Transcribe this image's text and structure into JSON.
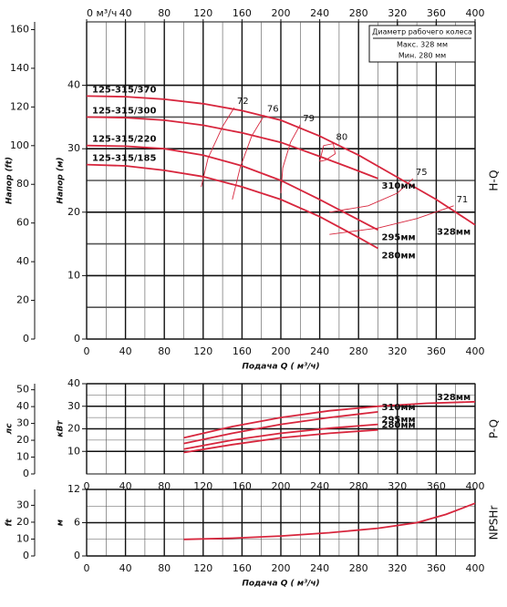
{
  "chart_data": [
    {
      "type": "line",
      "title": "H-Q",
      "xlabel": "Подача Q ( м³/ч)",
      "ylabel": "Напор (м)",
      "y2label": "Напор (ft)",
      "xlim": [
        0,
        400
      ],
      "xticks": [
        0,
        40,
        80,
        120,
        160,
        200,
        240,
        280,
        320,
        360,
        400
      ],
      "x2ticks": [
        {
          "value": 0,
          "label": "0 м³/ч"
        },
        40,
        80,
        120,
        160,
        200,
        240,
        280,
        320,
        360,
        400
      ],
      "ylim": [
        0,
        50
      ],
      "yticks": [
        0,
        10,
        20,
        30,
        40
      ],
      "y2lim": [
        0,
        164
      ],
      "y2ticks": [
        0,
        20,
        40,
        60,
        80,
        100,
        120,
        140,
        160
      ],
      "grid": true,
      "legend": {
        "title": "Диаметр рабочего колеса",
        "lines": [
          "Макс. 328 мм",
          "Мин. 280 мм"
        ]
      },
      "series": [
        {
          "name": "125-315/370",
          "label": "328мм",
          "color": "#d7263d",
          "x": [
            0,
            40,
            80,
            120,
            160,
            200,
            240,
            280,
            320,
            360,
            400
          ],
          "values": [
            38.3,
            38.2,
            37.8,
            37.1,
            36,
            34.5,
            32,
            29,
            25.5,
            22,
            18
          ]
        },
        {
          "name": "125-315/300",
          "label": "310мм",
          "color": "#d7263d",
          "x": [
            0,
            40,
            80,
            120,
            160,
            200,
            240,
            280,
            300
          ],
          "values": [
            35,
            34.9,
            34.5,
            33.7,
            32.5,
            31,
            28.8,
            26.5,
            25.3
          ]
        },
        {
          "name": "125-315/220",
          "label": "295мм",
          "color": "#d7263d",
          "x": [
            0,
            40,
            80,
            120,
            160,
            200,
            240,
            280,
            300
          ],
          "values": [
            30.5,
            30.4,
            30,
            29,
            27.3,
            25,
            22,
            18.8,
            17.2
          ]
        },
        {
          "name": "125-315/185",
          "label": "280мм",
          "color": "#d7263d",
          "x": [
            0,
            40,
            80,
            120,
            160,
            200,
            240,
            280,
            300
          ],
          "values": [
            27.5,
            27.3,
            26.6,
            25.6,
            24,
            22,
            19.3,
            16,
            14.3
          ]
        }
      ],
      "efficiency_lines": [
        {
          "name": "72",
          "color": "#d7263d",
          "x": [
            118,
            125,
            140,
            152
          ],
          "values": [
            24,
            28.5,
            33.5,
            36.5
          ]
        },
        {
          "name": "76",
          "color": "#d7263d",
          "x": [
            150,
            158,
            170,
            183
          ],
          "values": [
            22,
            27,
            32,
            35.3
          ]
        },
        {
          "name": "79",
          "color": "#d7263d",
          "x": [
            200,
            202,
            210,
            220
          ],
          "values": [
            23,
            27,
            31,
            33.8
          ]
        },
        {
          "name": "80",
          "color": "#d7263d",
          "x": [
            240,
            244,
            254,
            256,
            246,
            240
          ],
          "values": [
            28,
            30.5,
            30.8,
            29.2,
            28.2,
            28
          ]
        },
        {
          "name": "75",
          "color": "#d7263d",
          "x": [
            250,
            290,
            320,
            336
          ],
          "values": [
            20,
            21,
            23,
            25.3
          ]
        },
        {
          "name": "71",
          "color": "#d7263d",
          "x": [
            250,
            300,
            340,
            378
          ],
          "values": [
            16.5,
            17.5,
            19,
            21
          ]
        }
      ]
    },
    {
      "type": "line",
      "title": "P-Q",
      "ylabel": "кВт",
      "y2label": "лс",
      "xlim": [
        0,
        400
      ],
      "xticks": [
        0,
        40,
        80,
        120,
        160,
        200,
        240,
        280,
        320,
        360,
        400
      ],
      "ylim": [
        0,
        40
      ],
      "yticks": [
        10,
        20,
        30,
        40
      ],
      "y2lim": [
        0,
        53.6
      ],
      "y2ticks": [
        0,
        10,
        20,
        30,
        40,
        50
      ],
      "grid": true,
      "series": [
        {
          "name": "328мм",
          "color": "#d7263d",
          "x": [
            100,
            150,
            200,
            250,
            300,
            350,
            400
          ],
          "values": [
            16,
            21,
            25,
            28,
            30,
            31.3,
            32
          ]
        },
        {
          "name": "310мм",
          "color": "#d7263d",
          "x": [
            100,
            150,
            200,
            250,
            300
          ],
          "values": [
            13.5,
            18,
            22,
            25,
            27.5
          ]
        },
        {
          "name": "295мм",
          "color": "#d7263d",
          "x": [
            100,
            150,
            200,
            250,
            300
          ],
          "values": [
            11,
            15,
            18,
            20.3,
            22
          ]
        },
        {
          "name": "280мм",
          "color": "#d7263d",
          "x": [
            100,
            150,
            200,
            250,
            300
          ],
          "values": [
            9.5,
            13,
            16,
            18,
            19.5
          ]
        }
      ]
    },
    {
      "type": "line",
      "title": "NPSHr",
      "xlabel": "Подача Q ( м³/ч)",
      "ylabel": "м",
      "y2label": "ft",
      "xlim": [
        0,
        400
      ],
      "xticks": [
        0,
        40,
        80,
        120,
        160,
        200,
        240,
        280,
        320,
        360,
        400
      ],
      "ylim": [
        0,
        12
      ],
      "yticks": [
        0,
        6,
        12
      ],
      "y2lim": [
        0,
        39.4
      ],
      "y2ticks": [
        0,
        10,
        20,
        30
      ],
      "grid": true,
      "series": [
        {
          "color": "#d7263d",
          "x": [
            100,
            150,
            200,
            250,
            300,
            340,
            370,
            400
          ],
          "values": [
            3,
            3.2,
            3.6,
            4.2,
            5,
            6,
            7.5,
            9.5
          ]
        }
      ]
    }
  ]
}
